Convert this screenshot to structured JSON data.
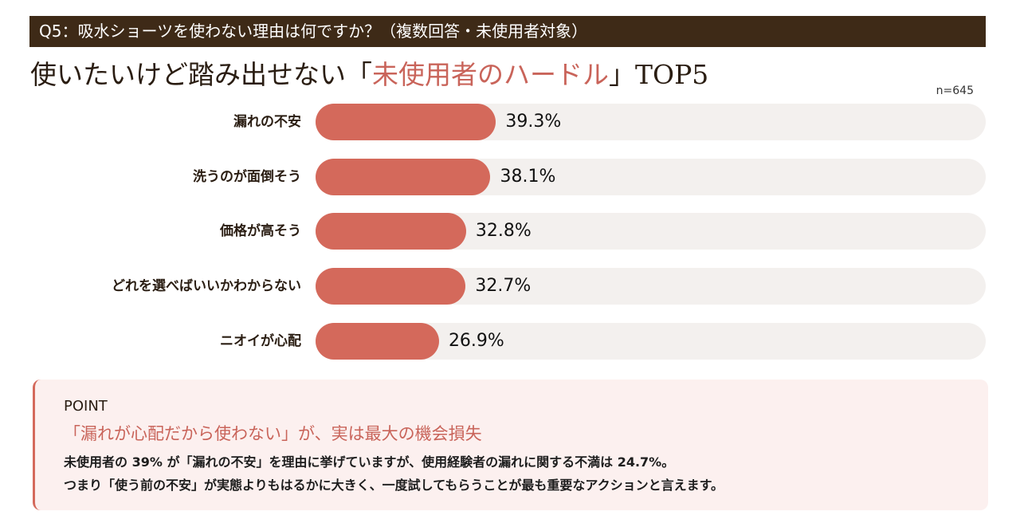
{
  "question": "Q5：吸水ショーツを使わない理由は何ですか？（複数回答・未使用者対象）",
  "title": {
    "prefix": "使いたいけど踏み出せない",
    "open": "「",
    "highlight": "未使用者のハードル",
    "close": "」",
    "suffix": "TOP5"
  },
  "colors": {
    "band": "#3e2a17",
    "bar": "#d4695b",
    "track": "#f3f0ee",
    "accent": "#c9645a"
  },
  "chart_data": {
    "type": "bar",
    "orientation": "horizontal",
    "title": "使いたいけど踏み出せない「未使用者のハードル」TOP5",
    "sample_size": "n=645",
    "categories": [
      "漏れの不安",
      "洗うのが面倒そう",
      "価格が高そう",
      "どれを選べばいいかわからない",
      "ニオイが心配"
    ],
    "values": [
      39.3,
      38.1,
      32.8,
      32.7,
      26.9
    ],
    "labels": [
      "39.3%",
      "38.1%",
      "32.8%",
      "32.7%",
      "26.9%"
    ],
    "unit": "%",
    "xlim": [
      0,
      146
    ]
  },
  "point": {
    "heading": "POINT",
    "title": "「漏れが心配だから使わない」が、実は最大の機会損失",
    "lines": [
      "未使用者の 39% が「漏れの不安」を理由に挙げていますが、使用経験者の漏れに関する不満は 24.7%。",
      "つまり「使う前の不安」が実態よりもはるかに大きく、一度試してもらうことが最も重要なアクションと言えます。"
    ]
  }
}
